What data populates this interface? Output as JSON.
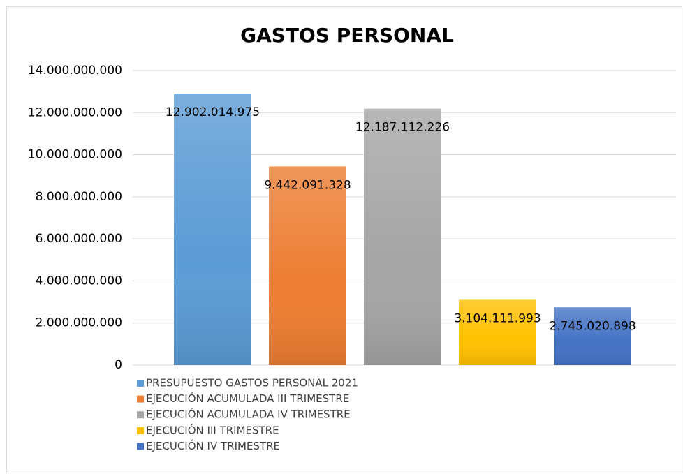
{
  "chart_data": {
    "type": "bar",
    "title": "GASTOS PERSONAL",
    "series": [
      {
        "name": "PRESUPUESTO GASTOS PERSONAL 2021",
        "color": "#5b9bd5",
        "values": [
          12902014975
        ],
        "value_labels": [
          "12.902.014.975"
        ]
      },
      {
        "name": "EJECUCIÓN ACUMULADA III TRIMESTRE",
        "color": "#ed7d31",
        "values": [
          9442091328
        ],
        "value_labels": [
          "9.442.091.328"
        ]
      },
      {
        "name": "EJECUCIÓN ACUMULADA IV TRIMESTRE",
        "color": "#a5a5a5",
        "values": [
          12187112226
        ],
        "value_labels": [
          "12.187.112.226"
        ]
      },
      {
        "name": "EJECUCIÓN III TRIMESTRE",
        "color": "#ffc000",
        "values": [
          3104111993
        ],
        "value_labels": [
          "3.104.111.993"
        ]
      },
      {
        "name": "EJECUCIÓN IV TRIMESTRE",
        "color": "#4472c4",
        "values": [
          2745020898
        ],
        "value_labels": [
          "2.745.020.898"
        ]
      }
    ],
    "ylim": [
      0,
      14000000000
    ],
    "yticks": [
      0,
      {
        "value": 2000000000,
        "label": "2.000.000.000"
      },
      {
        "value": 4000000000,
        "label": "4.000.000.000"
      },
      {
        "value": 6000000000,
        "label": "6.000.000.000"
      },
      {
        "value": 8000000000,
        "label": "8.000.000.000"
      },
      {
        "value": 10000000000,
        "label": "10.000.000.000"
      },
      {
        "value": 12000000000,
        "label": "12.000.000.000"
      },
      {
        "value": 14000000000,
        "label": "14.000.000.000"
      }
    ],
    "grid": true,
    "legend": "bottom"
  }
}
